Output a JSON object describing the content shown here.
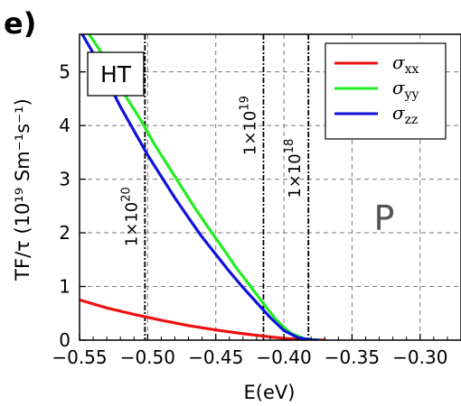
{
  "panel_label": "e)",
  "box_label": "HT",
  "region_label": "P",
  "chart_data": {
    "type": "line",
    "xlabel": "E(eV)",
    "ylabel": "TF/τ (10¹⁹ Sm⁻¹s⁻¹)",
    "xlim": [
      -0.55,
      -0.27
    ],
    "ylim": [
      0,
      5.7
    ],
    "xticks": [
      -0.55,
      -0.5,
      -0.45,
      -0.4,
      -0.35,
      -0.3
    ],
    "xtick_labels": [
      "−0.55",
      "−0.50",
      "−0.45",
      "−0.40",
      "−0.35",
      "−0.30"
    ],
    "yticks": [
      0,
      1,
      2,
      3,
      4,
      5
    ],
    "ytick_labels": [
      "0",
      "1",
      "2",
      "3",
      "4",
      "5"
    ],
    "grid": true,
    "legend_position": "top-right",
    "series": [
      {
        "name": "σxx",
        "legend_base": "σ",
        "legend_sub": "xx",
        "color": "#ee1111",
        "x": [
          -0.55,
          -0.53,
          -0.51,
          -0.49,
          -0.47,
          -0.45,
          -0.43,
          -0.41,
          -0.4,
          -0.39,
          -0.38,
          -0.37
        ],
        "y": [
          0.75,
          0.6,
          0.48,
          0.37,
          0.27,
          0.19,
          0.12,
          0.06,
          0.035,
          0.015,
          0.004,
          0.0
        ]
      },
      {
        "name": "σyy",
        "legend_base": "σ",
        "legend_sub": "yy",
        "color": "#22ee22",
        "x": [
          -0.543,
          -0.535,
          -0.525,
          -0.515,
          -0.505,
          -0.495,
          -0.485,
          -0.475,
          -0.465,
          -0.455,
          -0.445,
          -0.435,
          -0.425,
          -0.415,
          -0.405,
          -0.395,
          -0.385,
          -0.375
        ],
        "y": [
          5.7,
          5.4,
          4.95,
          4.5,
          4.1,
          3.65,
          3.25,
          2.85,
          2.45,
          2.08,
          1.72,
          1.35,
          1.02,
          0.68,
          0.36,
          0.13,
          0.025,
          0.0
        ]
      },
      {
        "name": "σzz",
        "legend_base": "σ",
        "legend_sub": "zz",
        "color": "#1111dd",
        "x": [
          -0.548,
          -0.54,
          -0.53,
          -0.52,
          -0.51,
          -0.5,
          -0.49,
          -0.48,
          -0.47,
          -0.46,
          -0.45,
          -0.44,
          -0.43,
          -0.42,
          -0.41,
          -0.4,
          -0.39,
          -0.38,
          -0.375
        ],
        "y": [
          5.7,
          5.35,
          4.85,
          4.35,
          3.9,
          3.45,
          3.05,
          2.65,
          2.28,
          1.92,
          1.6,
          1.28,
          0.98,
          0.7,
          0.42,
          0.18,
          0.05,
          0.005,
          0.0
        ]
      }
    ],
    "vertical_markers": [
      {
        "x": -0.502,
        "label_base": "1×10",
        "label_exp": "20",
        "label_y": 2.3
      },
      {
        "x": -0.415,
        "label_base": "1×10",
        "label_exp": "19",
        "label_y": 4.0
      },
      {
        "x": -0.382,
        "label_base": "1×10",
        "label_exp": "18",
        "label_y": 3.2
      }
    ]
  }
}
